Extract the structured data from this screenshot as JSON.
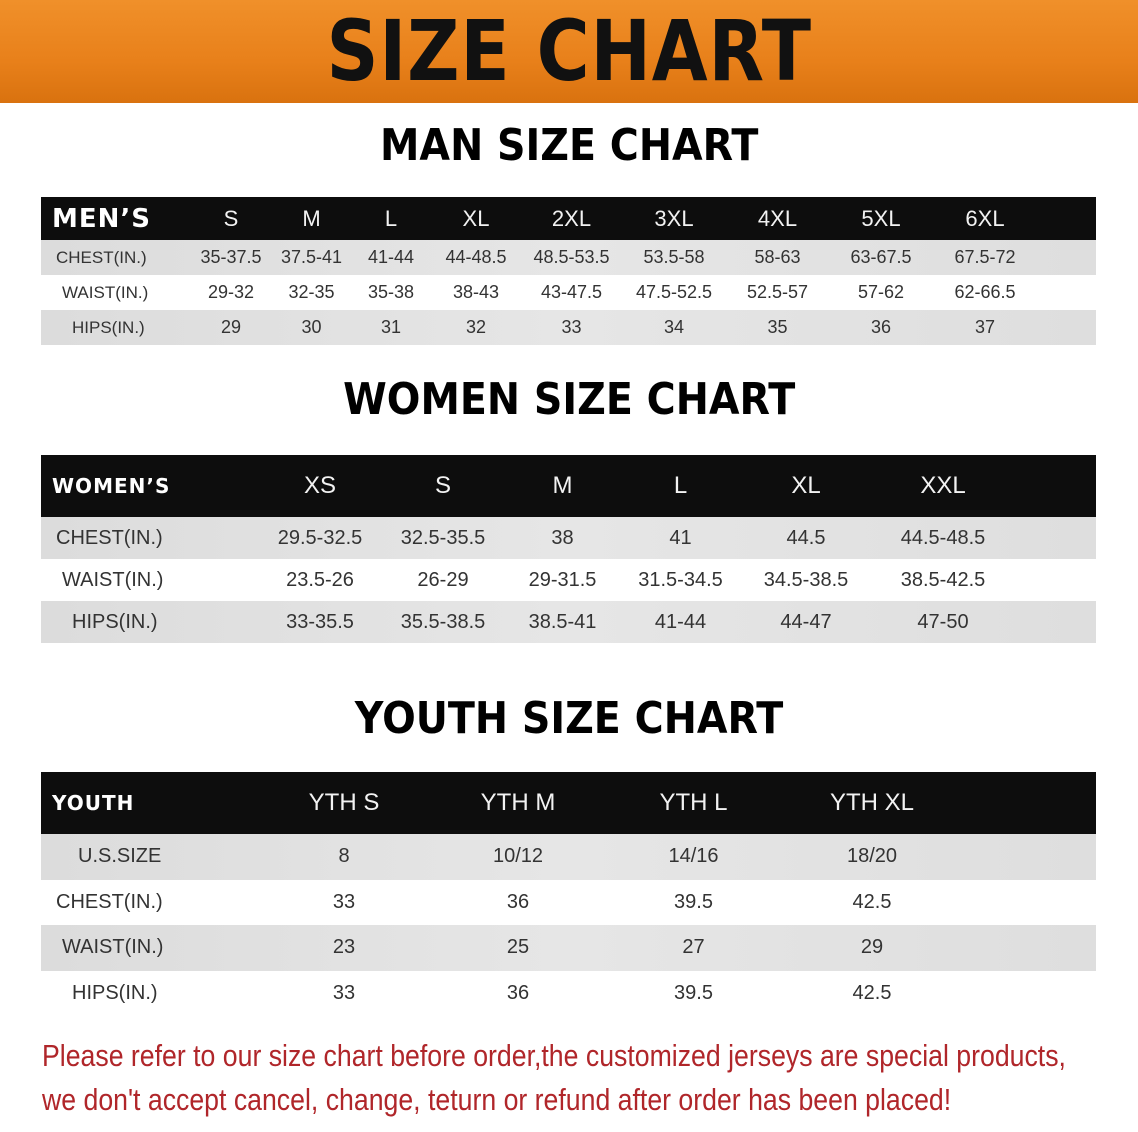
{
  "banner": {
    "title": "SIZE CHART",
    "color": "#e8801a"
  },
  "men": {
    "title": "MAN SIZE CHART",
    "header": [
      "MEN’S",
      "S",
      "M",
      "L",
      "XL",
      "2XL",
      "3XL",
      "4XL",
      "5XL",
      "6XL"
    ],
    "rows": [
      [
        "CHEST(IN.)",
        "35-37.5",
        "37.5-41",
        "41-44",
        "44-48.5",
        "48.5-53.5",
        "53.5-58",
        "58-63",
        "63-67.5",
        "67.5-72"
      ],
      [
        "WAIST(IN.)",
        "29-32",
        "32-35",
        "35-38",
        "38-43",
        "43-47.5",
        "47.5-52.5",
        "52.5-57",
        "57-62",
        "62-66.5"
      ],
      [
        "HIPS(IN.)",
        "29",
        "30",
        "31",
        "32",
        "33",
        "34",
        "35",
        "36",
        "37"
      ]
    ]
  },
  "women": {
    "title": "WOMEN SIZE CHART",
    "header": [
      "WOMEN’S",
      "XS",
      "S",
      "M",
      "L",
      "XL",
      "XXL"
    ],
    "rows": [
      [
        "CHEST(IN.)",
        "29.5-32.5",
        "32.5-35.5",
        "38",
        "41",
        "44.5",
        "44.5-48.5"
      ],
      [
        "WAIST(IN.)",
        "23.5-26",
        "26-29",
        "29-31.5",
        "31.5-34.5",
        "34.5-38.5",
        "38.5-42.5"
      ],
      [
        "HIPS(IN.)",
        "33-35.5",
        "35.5-38.5",
        "38.5-41",
        "41-44",
        "44-47",
        "47-50"
      ]
    ]
  },
  "youth": {
    "title": "YOUTH SIZE CHART",
    "header": [
      "YOUTH",
      "YTH S",
      "YTH M",
      "YTH L",
      "YTH XL"
    ],
    "rows": [
      [
        "U.S.SIZE",
        "8",
        "10/12",
        "14/16",
        "18/20"
      ],
      [
        "CHEST(IN.)",
        "33",
        "36",
        "39.5",
        "42.5"
      ],
      [
        "WAIST(IN.)",
        "23",
        "25",
        "27",
        "29"
      ],
      [
        "HIPS(IN.)",
        "33",
        "36",
        "39.5",
        "42.5"
      ]
    ]
  },
  "note": {
    "line1": "Please refer to our size chart before order,the customized jerseys are special products,",
    "line2": "we don't accept cancel, change, teturn or refund after order has been placed!",
    "color": "#b0262a"
  }
}
